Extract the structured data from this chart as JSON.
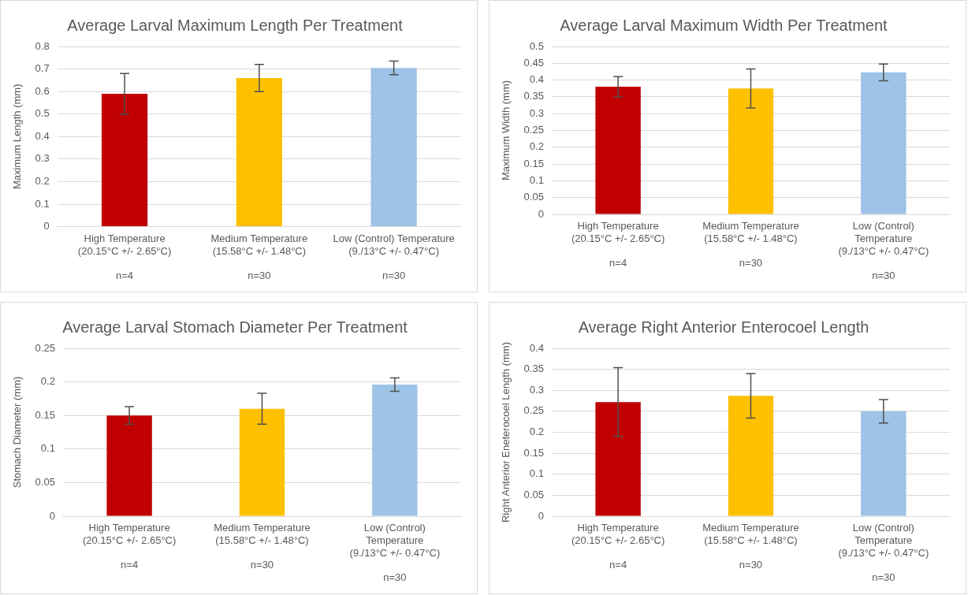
{
  "chart_data": [
    {
      "type": "bar",
      "title": "Average Larval Maximum Length Per Treatment",
      "ylabel": "Maximum Length (mm)",
      "categories": [
        "High Temperature\n(20.15°C +/- 2.65°C)\n\nn=4",
        "Medium Temperature\n(15.58°C +/- 1.48°C)\n\nn=30",
        "Low (Control) Temperature\n(9./13°C +/- 0.47°C)\n\nn=30"
      ],
      "values": [
        0.59,
        0.66,
        0.705
      ],
      "errors": [
        0.09,
        0.06,
        0.03
      ],
      "colors": [
        "#c00000",
        "#ffc000",
        "#9dc3e6"
      ],
      "ylim": [
        0,
        0.8
      ],
      "yticks": [
        {
          "value": 0,
          "label": "0"
        },
        0.1,
        0.2,
        0.3,
        0.4,
        0.5,
        0.6,
        0.7,
        0.8
      ],
      "grid": "y",
      "legend": false
    },
    {
      "type": "bar",
      "title": "Average Larval Maximum Width Per Treatment",
      "ylabel": "Maximum Width (mm)",
      "categories": [
        "High Temperature\n(20.15°C +/- 2.65°C)\n\nn=4",
        "Medium Temperature\n(15.58°C +/- 1.48°C)\n\nn=30",
        "Low (Control)\nTemperature\n(9./13°C +/- 0.47°C)\n\nn=30"
      ],
      "values": [
        0.38,
        0.375,
        0.423
      ],
      "errors": [
        0.03,
        0.058,
        0.025
      ],
      "colors": [
        "#c00000",
        "#ffc000",
        "#9dc3e6"
      ],
      "ylim": [
        0,
        0.5
      ],
      "yticks": [
        0,
        0.05,
        0.1,
        0.15,
        0.2,
        0.25,
        0.3,
        0.35,
        0.4,
        0.45,
        0.5
      ],
      "grid": "y",
      "legend": false
    },
    {
      "type": "bar",
      "title": "Average Larval Stomach Diameter Per Treatment",
      "ylabel": "Stomach Diameter (mm)",
      "categories": [
        "High Temperature\n(20.15°C +/- 2.65°C)\n\nn=4",
        "Medium Temperature\n(15.58°C +/- 1.48°C)\n\nn=30",
        "Low (Control)\nTemperature\n(9./13°C +/- 0.47°C)\n\nn=30"
      ],
      "values": [
        0.15,
        0.16,
        0.196
      ],
      "errors": [
        0.013,
        0.023,
        0.01
      ],
      "colors": [
        "#c00000",
        "#ffc000",
        "#9dc3e6"
      ],
      "ylim": [
        0,
        0.25
      ],
      "yticks": [
        0,
        0.05,
        0.1,
        0.15,
        0.2,
        0.25
      ],
      "grid": "y",
      "legend": false
    },
    {
      "type": "bar",
      "title": "Average Right Anterior Enterocoel Length",
      "ylabel": "Right Anterior Eneterocoel Length (mm)",
      "categories": [
        "High Temperature\n(20.15°C +/- 2.65°C)\n\nn=4",
        "Medium Temperature\n(15.58°C +/- 1.48°C)\n\nn=30",
        "Low (Control)\nTemperature\n(9./13°C +/- 0.47°C)\n\nn=30"
      ],
      "values": [
        0.272,
        0.287,
        0.25
      ],
      "errors": [
        0.082,
        0.053,
        0.028
      ],
      "colors": [
        "#c00000",
        "#ffc000",
        "#9dc3e6"
      ],
      "ylim": [
        0,
        0.4
      ],
      "yticks": [
        0,
        0.05,
        0.1,
        0.15,
        0.2,
        0.25,
        0.3,
        0.35,
        0.4
      ],
      "grid": "y",
      "legend": false
    }
  ]
}
